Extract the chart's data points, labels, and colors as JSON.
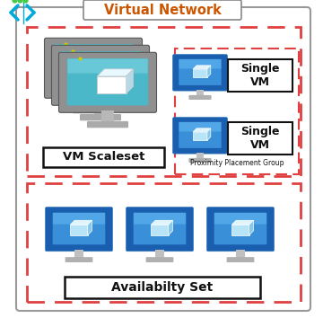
{
  "title": "Virtual Network",
  "vm_scaleset_label": "VM Scaleset",
  "availability_set_label": "Availabilty Set",
  "proximity_label": "Proximity Placement Group",
  "single_vm_label": "Single\nVM",
  "outer_border_color": "#999999",
  "dashed_border_color": "#e04040",
  "bg_color": "#ffffff",
  "title_color": "#cc5500",
  "label_color": "#111111",
  "arrow_cyan": "#00aadd",
  "arrow_green_dot": "#44cc44",
  "monitor_grey_frame": "#888888",
  "monitor_grey_fill": "#aaaaaa",
  "monitor_screen_teal": "#4ab8c8",
  "monitor_blue_fill": "#1a6abf",
  "monitor_blue_light": "#3a9ad4",
  "cube_front": "#b8e4f9",
  "cube_top": "#e0f6ff",
  "cube_right": "#7bbedd",
  "cube_white": "#ffffff",
  "stand_color": "#c0c0c0",
  "base_color": "#b0b0b0",
  "figw": 3.6,
  "figh": 3.54,
  "dpi": 100
}
